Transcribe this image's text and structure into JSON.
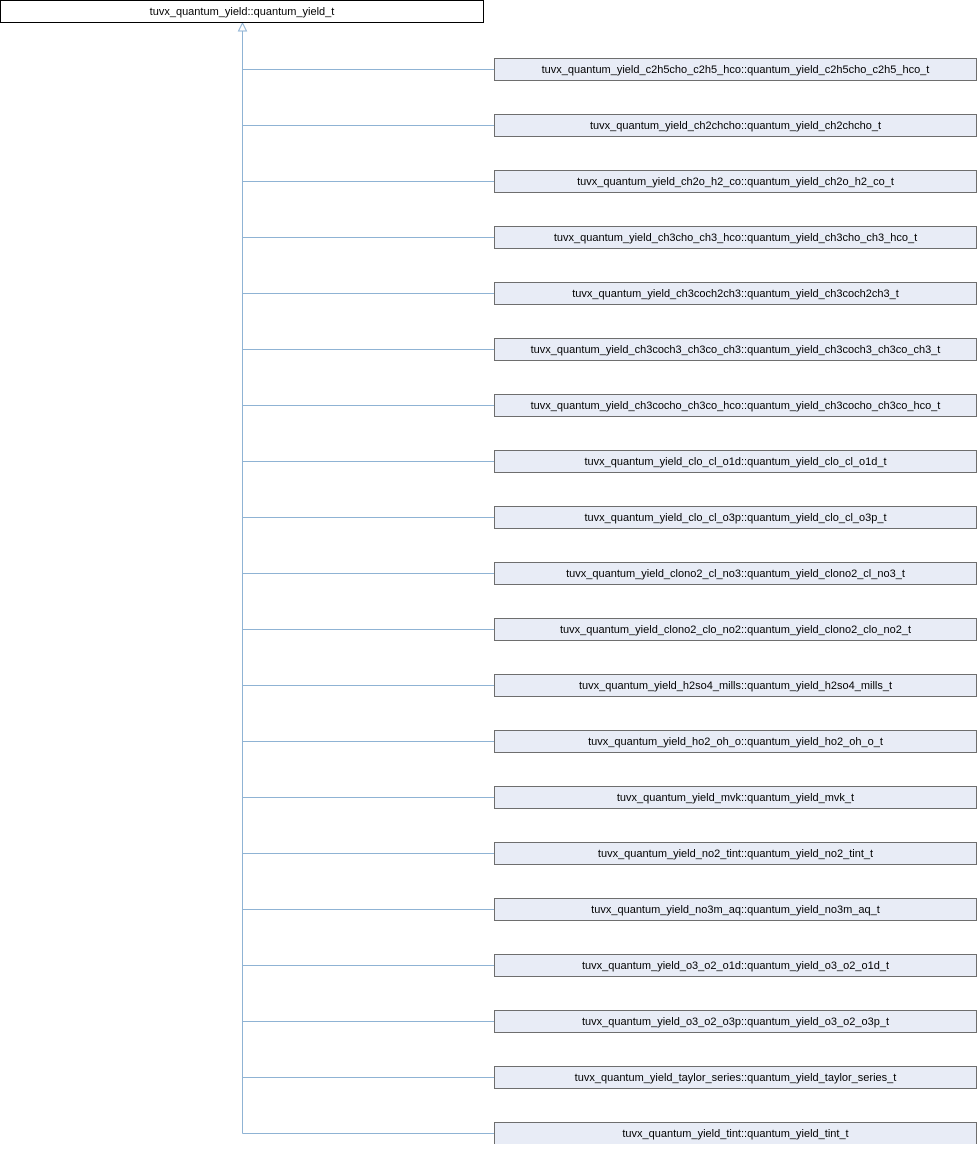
{
  "root": {
    "label": "tuvx_quantum_yield::quantum_yield_t"
  },
  "nodes": [
    {
      "label": "tuvx_quantum_yield_c2h5cho_c2h5_hco::quantum_yield_c2h5cho_c2h5_hco_t"
    },
    {
      "label": "tuvx_quantum_yield_ch2chcho::quantum_yield_ch2chcho_t"
    },
    {
      "label": "tuvx_quantum_yield_ch2o_h2_co::quantum_yield_ch2o_h2_co_t"
    },
    {
      "label": "tuvx_quantum_yield_ch3cho_ch3_hco::quantum_yield_ch3cho_ch3_hco_t"
    },
    {
      "label": "tuvx_quantum_yield_ch3coch2ch3::quantum_yield_ch3coch2ch3_t"
    },
    {
      "label": "tuvx_quantum_yield_ch3coch3_ch3co_ch3::quantum_yield_ch3coch3_ch3co_ch3_t"
    },
    {
      "label": "tuvx_quantum_yield_ch3cocho_ch3co_hco::quantum_yield_ch3cocho_ch3co_hco_t"
    },
    {
      "label": "tuvx_quantum_yield_clo_cl_o1d::quantum_yield_clo_cl_o1d_t"
    },
    {
      "label": "tuvx_quantum_yield_clo_cl_o3p::quantum_yield_clo_cl_o3p_t"
    },
    {
      "label": "tuvx_quantum_yield_clono2_cl_no3::quantum_yield_clono2_cl_no3_t"
    },
    {
      "label": "tuvx_quantum_yield_clono2_clo_no2::quantum_yield_clono2_clo_no2_t"
    },
    {
      "label": "tuvx_quantum_yield_h2so4_mills::quantum_yield_h2so4_mills_t"
    },
    {
      "label": "tuvx_quantum_yield_ho2_oh_o::quantum_yield_ho2_oh_o_t"
    },
    {
      "label": "tuvx_quantum_yield_mvk::quantum_yield_mvk_t"
    },
    {
      "label": "tuvx_quantum_yield_no2_tint::quantum_yield_no2_tint_t"
    },
    {
      "label": "tuvx_quantum_yield_no3m_aq::quantum_yield_no3m_aq_t"
    },
    {
      "label": "tuvx_quantum_yield_o3_o2_o1d::quantum_yield_o3_o2_o1d_t"
    },
    {
      "label": "tuvx_quantum_yield_o3_o2_o3p::quantum_yield_o3_o2_o3p_t"
    },
    {
      "label": "tuvx_quantum_yield_taylor_series::quantum_yield_taylor_series_t"
    },
    {
      "label": "tuvx_quantum_yield_tint::quantum_yield_tint_t"
    }
  ]
}
